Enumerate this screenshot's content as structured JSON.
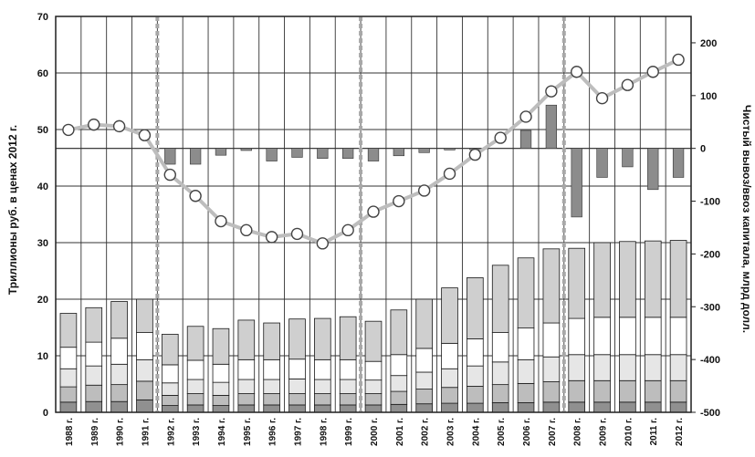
{
  "chart_data": {
    "type": "bar",
    "title": "",
    "ylabel_left": "Триллионы руб. в ценах 2012 г.",
    "ylabel_right": "Чистый вывоз/ввоз капитала, млрд долл.",
    "ylim_left": [
      0,
      70
    ],
    "yticks_left": [
      "0",
      "10",
      "20",
      "30",
      "40",
      "50",
      "60",
      "70"
    ],
    "ylim_right": [
      -500,
      250
    ],
    "yticks_right": [
      "-500",
      "-400",
      "-300",
      "-200",
      "-100",
      "0",
      "100",
      "200"
    ],
    "categories": [
      "1988 г.",
      "1989 г.",
      "1990 г.",
      "1991 г.",
      "1992 г.",
      "1993 г.",
      "1994 г.",
      "1995 г.",
      "1996 г.",
      "1997 г.",
      "1998 г.",
      "1999 г.",
      "2000 г.",
      "2001 г.",
      "2002 г.",
      "2003 г.",
      "2004 г.",
      "2005 г.",
      "2006 г.",
      "2007 г.",
      "2008 г.",
      "2009 г.",
      "2010 г.",
      "2011 г.",
      "2012 г."
    ],
    "stacked_series": [
      {
        "values": [
          1.8,
          1.9,
          1.9,
          2.2,
          1.2,
          1.3,
          1.2,
          1.3,
          1.3,
          1.3,
          1.3,
          1.3,
          1.3,
          1.4,
          1.5,
          1.6,
          1.6,
          1.7,
          1.7,
          1.8,
          1.8,
          1.8,
          1.8,
          1.8,
          1.8
        ],
        "color": "#909090"
      },
      {
        "values": [
          2.7,
          2.9,
          3.0,
          3.3,
          1.8,
          2.0,
          1.8,
          2.0,
          2.0,
          2.0,
          2.0,
          2.0,
          2.0,
          2.3,
          2.6,
          2.8,
          3.0,
          3.2,
          3.4,
          3.6,
          3.8,
          3.8,
          3.8,
          3.8,
          3.8
        ],
        "color": "#bdbdbd"
      },
      {
        "values": [
          3.2,
          3.4,
          3.6,
          3.8,
          2.2,
          2.5,
          2.3,
          2.5,
          2.5,
          2.6,
          2.5,
          2.5,
          2.4,
          2.8,
          3.0,
          3.3,
          3.6,
          4.0,
          4.2,
          4.4,
          4.6,
          4.6,
          4.6,
          4.6,
          4.6
        ],
        "color": "#e6e6e6"
      },
      {
        "values": [
          3.8,
          4.2,
          4.6,
          4.8,
          3.2,
          3.4,
          3.2,
          3.5,
          3.5,
          3.5,
          3.5,
          3.5,
          3.3,
          3.7,
          4.2,
          4.5,
          4.8,
          5.2,
          5.6,
          6.0,
          6.4,
          6.6,
          6.6,
          6.6,
          6.6
        ],
        "color": "#ffffff"
      },
      {
        "values": [
          6.0,
          6.1,
          6.5,
          5.9,
          5.4,
          6.0,
          6.3,
          7.0,
          6.5,
          7.1,
          7.3,
          7.6,
          7.1,
          7.9,
          8.7,
          9.8,
          10.8,
          11.9,
          12.4,
          13.1,
          12.4,
          13.2,
          13.4,
          13.5,
          13.6
        ],
        "color": "#cfcfcf"
      }
    ],
    "capital_flow_bars": [
      0,
      0,
      0,
      0,
      -30,
      -30,
      -13,
      -4,
      -24,
      -17,
      -19,
      -19,
      -24,
      -14,
      -8,
      -3,
      -1,
      0,
      34,
      82,
      -130,
      -55,
      -35,
      -78,
      -55
    ],
    "capital_flow_color": "#8c8c8c",
    "cumulative_line": [
      35,
      45,
      42,
      25,
      -50,
      -90,
      -138,
      -155,
      -168,
      -162,
      -180,
      -155,
      -120,
      -100,
      -80,
      -48,
      -12,
      20,
      60,
      108,
      145,
      95,
      120,
      145,
      168
    ],
    "line_color": "#bdbdbd",
    "dashed_dividers_after": [
      "1991 г.",
      "1999 г.",
      "2007 г."
    ],
    "grid": true
  }
}
